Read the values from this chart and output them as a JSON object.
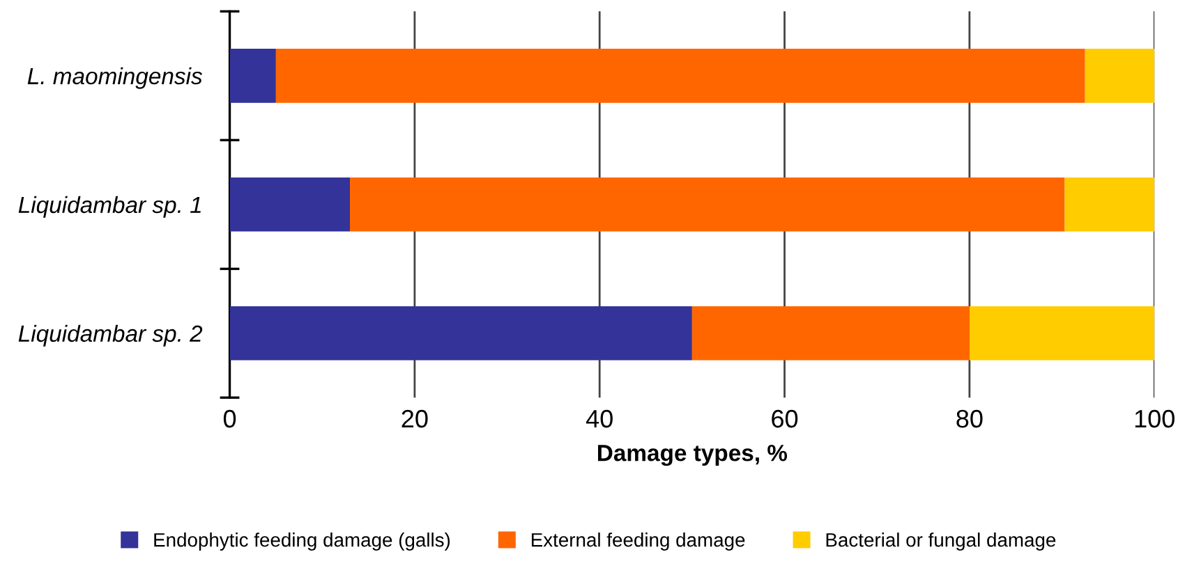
{
  "chart_data": {
    "type": "bar",
    "orientation": "horizontal",
    "stacked": true,
    "categories": [
      "L. maomingensis",
      "Liquidambar sp. 1",
      "Liquidambar sp. 2"
    ],
    "series": [
      {
        "name": "Endophytic feeding damage (galls)",
        "color": "#333399",
        "values": [
          5,
          13,
          50
        ]
      },
      {
        "name": "External feeding damage",
        "color": "#ff6600",
        "values": [
          87.5,
          77.3,
          30
        ]
      },
      {
        "name": "Bacterial or fungal damage",
        "color": "#ffcc00",
        "values": [
          7.5,
          9.7,
          20
        ]
      }
    ],
    "xlabel": "Damage types, %",
    "xlim": [
      0,
      100
    ],
    "xticks": [
      0,
      20,
      40,
      60,
      80,
      100
    ],
    "grid": "x",
    "legend": "bottom"
  }
}
